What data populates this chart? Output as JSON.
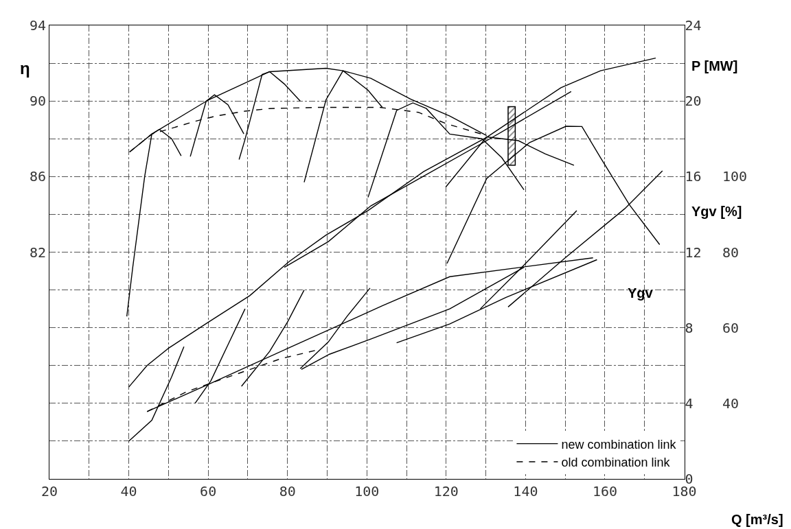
{
  "chart_data": {
    "type": "line",
    "xlabel": "Q [m³/s]",
    "ylabel": "η",
    "y2label": "P [MW]",
    "y3label": "Ygv [%]",
    "xlim": [
      20,
      180
    ],
    "xticks": [
      20,
      {
        "value": 30,
        "label": null
      },
      40,
      {
        "value": 50,
        "label": null
      },
      60,
      {
        "value": 70,
        "label": null
      },
      80,
      {
        "value": 90,
        "label": null
      },
      100,
      {
        "value": 110,
        "label": null
      },
      120,
      {
        "value": 130,
        "label": null
      },
      140,
      {
        "value": 150,
        "label": null
      },
      160,
      {
        "value": 170,
        "label": null
      },
      180
    ],
    "ylim": [
      70,
      94
    ],
    "yticks": [
      {
        "value": 70,
        "label": null
      },
      {
        "value": 72,
        "label": null
      },
      {
        "value": 74,
        "label": null
      },
      {
        "value": 76,
        "label": null
      },
      {
        "value": 78,
        "label": null
      },
      {
        "value": 80,
        "label": null
      },
      82,
      {
        "value": 84,
        "label": null
      },
      86,
      {
        "value": 88,
        "label": null
      },
      90,
      {
        "value": 92,
        "label": null
      },
      94
    ],
    "y2lim": [
      0,
      24
    ],
    "y2ticks": [
      0,
      4,
      8,
      12,
      16,
      20,
      24
    ],
    "y3lim": [
      20,
      140
    ],
    "y3ticks": [
      40,
      60,
      80,
      100
    ],
    "grid": true,
    "legend": "bottom right",
    "marker": "none",
    "annotations": [
      "Ygv"
    ],
    "series": [
      {
        "name": "new combination link",
        "type": "line",
        "axis": "y",
        "line_style": "solid",
        "color": "#000000",
        "x": [
          40.2,
          45.8,
          60.1,
          75.5,
          89.7,
          94,
          101,
          111,
          120.9,
          130.2
        ],
        "values": [
          87.3,
          88.25,
          90.06,
          91.55,
          91.73,
          91.6,
          91.2,
          90.1,
          89.2,
          88.17
        ]
      },
      {
        "name": "old combination link",
        "type": "line",
        "axis": "y",
        "line_style": "dashed",
        "color": "#000000",
        "x": [
          40.2,
          45.8,
          57,
          61.9,
          69.3,
          75.5,
          87.8,
          103.3,
          113,
          120,
          130.2
        ],
        "values": [
          87.3,
          88.25,
          88.94,
          89.2,
          89.46,
          89.6,
          89.66,
          89.66,
          89.4,
          88.8,
          88.17
        ]
      },
      {
        "type": "line",
        "axis": "y",
        "line_style": "solid",
        "color": "#000000",
        "x": [
          39.5,
          41,
          44,
          45.8,
          47.7,
          50.8,
          53.2
        ],
        "values": [
          78.6,
          81.2,
          86.0,
          88.25,
          88.5,
          88.0,
          87.1
        ]
      },
      {
        "type": "line",
        "axis": "y",
        "line_style": "solid",
        "color": "#000000",
        "x": [
          55.5,
          59.5,
          61.6,
          65,
          69
        ],
        "values": [
          87.06,
          89.99,
          90.33,
          89.8,
          88.26
        ]
      },
      {
        "type": "line",
        "axis": "y",
        "line_style": "solid",
        "color": "#000000",
        "x": [
          67.8,
          69.3,
          73.6,
          75.5,
          79.2,
          83.2
        ],
        "values": [
          86.9,
          87.97,
          91.4,
          91.55,
          90.9,
          90.0
        ]
      },
      {
        "type": "line",
        "axis": "y",
        "line_style": "solid",
        "color": "#000000",
        "x": [
          84.2,
          89.7,
          94,
          100.3,
          103.9
        ],
        "values": [
          85.7,
          90.06,
          91.6,
          90.57,
          89.66
        ]
      },
      {
        "type": "line",
        "axis": "y",
        "line_style": "solid",
        "color": "#000000",
        "x": [
          100.3,
          107.5,
          111.6,
          115,
          120.9,
          129,
          134,
          139.6
        ],
        "values": [
          84.9,
          89.5,
          89.9,
          89.6,
          88.25,
          88.0,
          87.0,
          85.3
        ]
      },
      {
        "type": "line",
        "axis": "y",
        "line_style": "solid",
        "color": "#000000",
        "x": [
          119.9,
          130.2,
          138.2,
          145,
          152.2
        ],
        "values": [
          85.45,
          88.1,
          87.9,
          87.2,
          86.6
        ]
      },
      {
        "type": "line",
        "axis": "y",
        "line_style": "solid",
        "color": "#000000",
        "x": [
          120.2,
          130.2,
          141,
          150.2,
          154.2,
          158.9,
          166.2,
          173.8
        ],
        "values": [
          81.4,
          85.9,
          87.8,
          88.66,
          88.65,
          87.0,
          84.5,
          82.4
        ]
      },
      {
        "type": "line",
        "axis": "y2",
        "line_style": "solid",
        "color": "#000000",
        "x": [
          40,
          44.6,
          50.1,
          60.1,
          70.5,
          80.4,
          89.7,
          100.3,
          114.3,
          130.2,
          148.9,
          158.9,
          172.8
        ],
        "values": [
          4.86,
          6.0,
          6.93,
          8.3,
          9.7,
          11.5,
          12.9,
          14.2,
          16.26,
          18.08,
          20.7,
          21.6,
          22.27
        ]
      },
      {
        "type": "line",
        "axis": "y2",
        "line_style": "solid",
        "color": "#000000",
        "x": [
          79.2,
          90.3,
          101,
          130.2,
          151.5
        ],
        "values": [
          11.2,
          12.56,
          14.45,
          17.9,
          20.5
        ]
      },
      {
        "type": "line",
        "axis": "y2",
        "line_style": "solid",
        "color": "#000000",
        "x": [
          40,
          45.8,
          50.8,
          53.9
        ],
        "values": [
          2.0,
          3.1,
          5.4,
          7.0
        ]
      },
      {
        "type": "line",
        "axis": "y2",
        "line_style": "solid",
        "color": "#000000",
        "x": [
          56.7,
          60.7,
          65,
          69.3
        ],
        "values": [
          4.0,
          5.2,
          7.1,
          9.0
        ]
      },
      {
        "type": "line",
        "axis": "y2",
        "line_style": "solid",
        "color": "#000000",
        "x": [
          68.4,
          75.5,
          80,
          84.2
        ],
        "values": [
          4.9,
          6.75,
          8.3,
          10.0
        ]
      },
      {
        "type": "line",
        "axis": "y2",
        "line_style": "solid",
        "color": "#000000",
        "x": [
          83.2,
          90.3,
          95,
          100.8
        ],
        "values": [
          5.84,
          7.25,
          8.6,
          10.1
        ]
      },
      {
        "type": "line",
        "axis": "y2",
        "line_style": "solid",
        "color": "#000000",
        "x": [
          128.6,
          140,
          152.9
        ],
        "values": [
          9.0,
          11.4,
          14.2
        ]
      },
      {
        "type": "line",
        "axis": "y2",
        "line_style": "solid",
        "color": "#000000",
        "x": [
          135.6,
          150,
          165,
          174.5
        ],
        "values": [
          9.1,
          11.7,
          14.3,
          16.3
        ]
      },
      {
        "type": "line",
        "axis": "y3",
        "line_style": "solid",
        "color": "#000000",
        "x": [
          44.6,
          60,
          80,
          103.9,
          120.9,
          141,
          157
        ],
        "values": [
          37.8,
          45,
          54.5,
          65.8,
          73.5,
          76.3,
          78.5
        ]
      },
      {
        "type": "line",
        "axis": "y3",
        "line_style": "solid",
        "color": "#000000",
        "x": [
          83.5,
          90.6,
          101,
          120.9,
          139.6
        ],
        "values": [
          49,
          53,
          57,
          65,
          76
        ]
      },
      {
        "type": "line",
        "axis": "y3",
        "line_style": "solid",
        "color": "#000000",
        "x": [
          107.5,
          120.9,
          135,
          158
        ],
        "values": [
          56,
          61,
          68,
          78
        ]
      },
      {
        "type": "line",
        "axis": "y3",
        "line_style": "dashed",
        "color": "#000000",
        "x": [
          44.6,
          54.4,
          63.8,
          78.3,
          87
        ],
        "values": [
          37.8,
          43,
          46.5,
          51.8,
          54
        ]
      },
      {
        "type": "bar",
        "axis": "y",
        "color": "#000000",
        "x": [
          136.5
        ],
        "base": [
          86.6
        ],
        "values": [
          3.1
        ]
      }
    ]
  }
}
